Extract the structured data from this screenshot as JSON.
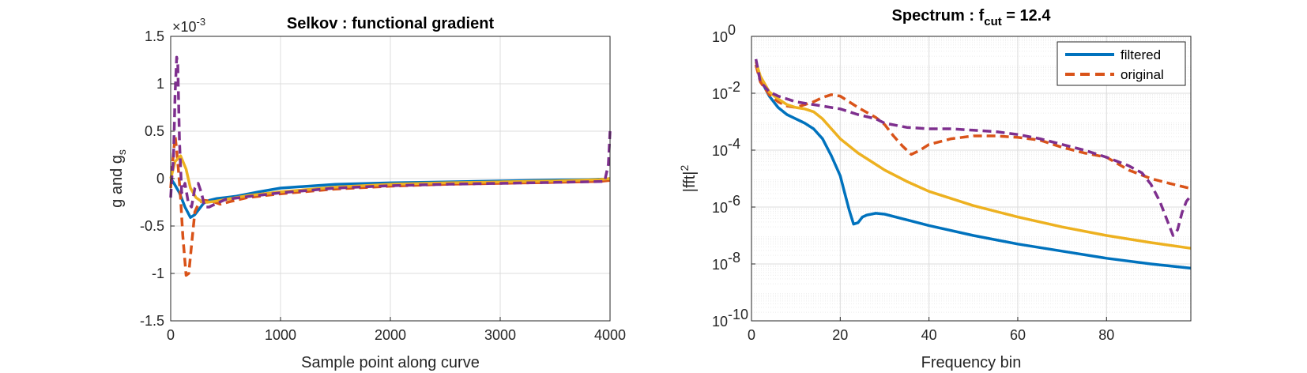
{
  "chart_data": [
    {
      "type": "line",
      "title": "Selkov : functional gradient",
      "xlabel": "Sample point along curve",
      "ylabel": "g and g",
      "ylabel_sub": "s",
      "xlim": [
        0,
        4000
      ],
      "ylim": [
        -0.0015,
        0.0015
      ],
      "exponent_label": "×10",
      "exponent_value": "-3",
      "grid": true,
      "x_ticks": [
        "0",
        "1000",
        "2000",
        "3000",
        "4000"
      ],
      "y_ticks": [
        "-1.5",
        "-1",
        "-0.5",
        "0",
        "0.5",
        "1",
        "1.5"
      ],
      "series": [
        {
          "color": "#0072BD",
          "style": "solid",
          "x": [
            0,
            30,
            80,
            130,
            180,
            220,
            260,
            300,
            350,
            420,
            500,
            600,
            800,
            1000,
            1500,
            2000,
            2500,
            3000,
            3500,
            3800,
            3950,
            4000
          ],
          "y": [
            0,
            -5e-05,
            -0.00015,
            -0.0003,
            -0.00041,
            -0.00038,
            -0.00032,
            -0.00026,
            -0.00023,
            -0.00021,
            -0.0002,
            -0.000185,
            -0.00014,
            -0.0001,
            -6e-05,
            -4.5e-05,
            -3.5e-05,
            -2.5e-05,
            -1.5e-05,
            -1e-05,
            -5e-06,
            0
          ]
        },
        {
          "color": "#D95319",
          "style": "dashed",
          "x": [
            0,
            20,
            40,
            55,
            70,
            90,
            110,
            140,
            165,
            190,
            220,
            260,
            310,
            380,
            450,
            550,
            700,
            1000,
            1500,
            2000,
            2500,
            3000,
            3500,
            3900,
            3990,
            4000
          ],
          "y": [
            -0.0001,
            0.0002,
            0.00045,
            0.0003,
            0.0001,
            -0.0002,
            -0.0006,
            -0.00102,
            -0.001,
            -0.0007,
            -0.00035,
            -0.00025,
            -0.00023,
            -0.00024,
            -0.00027,
            -0.00024,
            -0.0002,
            -0.00016,
            -0.00011,
            -8e-05,
            -6e-05,
            -5e-05,
            -4e-05,
            -3e-05,
            -2e-05,
            0
          ]
        },
        {
          "color": "#EDB120",
          "style": "solid",
          "x": [
            0,
            40,
            90,
            140,
            180,
            230,
            280,
            330,
            400,
            500,
            700,
            1000,
            1500,
            2000,
            2500,
            3000,
            3500,
            3900,
            4000
          ],
          "y": [
            0,
            0.00018,
            0.00024,
            0.0001,
            -0.0001,
            -0.0002,
            -0.00024,
            -0.00025,
            -0.00024,
            -0.00022,
            -0.00018,
            -0.00014,
            -9e-05,
            -6e-05,
            -4.5e-05,
            -3.5e-05,
            -2.5e-05,
            -1e-05,
            0
          ]
        },
        {
          "color": "#7E2F8E",
          "style": "dashed",
          "x": [
            0,
            10,
            25,
            40,
            55,
            65,
            80,
            100,
            130,
            160,
            190,
            220,
            250,
            280,
            310,
            350,
            420,
            500,
            700,
            1000,
            1500,
            2000,
            2500,
            3000,
            3500,
            3950,
            3985,
            4000
          ],
          "y": [
            -0.0002,
            0.0,
            0.0002,
            0.0009,
            0.00128,
            0.0012,
            0.0004,
            -0.00015,
            -5e-05,
            -0.00025,
            -0.0003,
            -0.0001,
            -5e-05,
            -0.00015,
            -0.0003,
            -0.0003,
            -0.00026,
            -0.00022,
            -0.00019,
            -0.00015,
            -0.0001,
            -7.5e-05,
            -6e-05,
            -5e-05,
            -4e-05,
            -3e-05,
            0.00015,
            0.0005
          ]
        }
      ]
    },
    {
      "type": "line",
      "title": "Spectrum : f",
      "title_sub": "cut",
      "title_suffix": " = 12.4",
      "xlabel": "Frequency bin",
      "ylabel": "|fft|",
      "ylabel_sup": "2",
      "xlim": [
        0,
        99
      ],
      "ylim_exp": [
        -10,
        0
      ],
      "yscale": "log",
      "grid": true,
      "x_ticks": [
        "0",
        "20",
        "40",
        "60",
        "80"
      ],
      "y_tick_base": "10",
      "y_tick_exps": [
        "-10",
        "-8",
        "-6",
        "-4",
        "-2",
        "0"
      ],
      "legend": {
        "position": "top-right",
        "entries": [
          "filtered",
          "original"
        ]
      },
      "series": [
        {
          "name": "filtered",
          "color": "#0072BD",
          "style": "solid",
          "x": [
            1,
            2,
            4,
            6,
            8,
            10,
            12,
            14,
            16,
            18,
            20,
            21,
            22,
            23,
            24,
            25,
            26,
            28,
            30,
            35,
            40,
            50,
            60,
            70,
            80,
            90,
            99
          ],
          "log10_y": [
            -1.0,
            -1.5,
            -2.1,
            -2.5,
            -2.75,
            -2.9,
            -3.05,
            -3.25,
            -3.6,
            -4.2,
            -4.9,
            -5.5,
            -6.1,
            -6.6,
            -6.55,
            -6.35,
            -6.28,
            -6.22,
            -6.25,
            -6.45,
            -6.65,
            -7.0,
            -7.3,
            -7.55,
            -7.8,
            -8.0,
            -8.15
          ]
        },
        {
          "name": "original",
          "color": "#D95319",
          "style": "dashed",
          "x": [
            1,
            2,
            4,
            6,
            8,
            10,
            12,
            14,
            16,
            18,
            20,
            24,
            28,
            30,
            32,
            34,
            36,
            38,
            40,
            45,
            50,
            55,
            60,
            65,
            70,
            75,
            80,
            85,
            90,
            95,
            99
          ],
          "log10_y": [
            -1.0,
            -1.6,
            -2.05,
            -2.3,
            -2.45,
            -2.5,
            -2.4,
            -2.3,
            -2.15,
            -2.05,
            -2.1,
            -2.5,
            -2.85,
            -3.1,
            -3.5,
            -3.85,
            -4.15,
            -4.0,
            -3.8,
            -3.6,
            -3.5,
            -3.5,
            -3.55,
            -3.65,
            -3.9,
            -4.1,
            -4.25,
            -4.7,
            -5.0,
            -5.2,
            -5.35
          ]
        },
        {
          "color": "#EDB120",
          "style": "solid",
          "x": [
            1,
            2,
            4,
            6,
            8,
            10,
            12,
            14,
            16,
            18,
            20,
            24,
            28,
            30,
            35,
            40,
            50,
            60,
            70,
            80,
            90,
            99
          ],
          "log10_y": [
            -0.9,
            -1.4,
            -1.95,
            -2.2,
            -2.4,
            -2.5,
            -2.55,
            -2.65,
            -2.9,
            -3.25,
            -3.6,
            -4.1,
            -4.5,
            -4.7,
            -5.1,
            -5.45,
            -5.95,
            -6.35,
            -6.7,
            -7.0,
            -7.25,
            -7.45
          ]
        },
        {
          "color": "#7E2F8E",
          "style": "dashed",
          "x": [
            1,
            2,
            4,
            6,
            8,
            10,
            12,
            14,
            16,
            18,
            20,
            24,
            28,
            30,
            35,
            40,
            45,
            50,
            55,
            60,
            65,
            70,
            75,
            80,
            85,
            88,
            90,
            92,
            94,
            95,
            96,
            97,
            98,
            99
          ],
          "log10_y": [
            -0.8,
            -1.6,
            -1.95,
            -2.1,
            -2.2,
            -2.3,
            -2.35,
            -2.4,
            -2.45,
            -2.5,
            -2.55,
            -2.75,
            -2.9,
            -3.05,
            -3.2,
            -3.25,
            -3.25,
            -3.3,
            -3.35,
            -3.45,
            -3.6,
            -3.8,
            -4.0,
            -4.25,
            -4.55,
            -4.8,
            -5.2,
            -5.8,
            -6.6,
            -7.0,
            -6.8,
            -6.2,
            -5.8,
            -5.6
          ]
        }
      ]
    }
  ]
}
